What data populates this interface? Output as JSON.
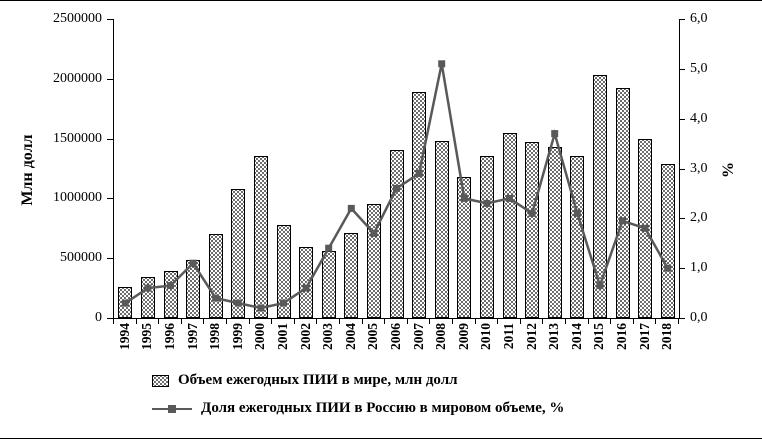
{
  "chart_data": {
    "type": "bar",
    "subtype": "bar-line-combo",
    "categories": [
      "1994",
      "1995",
      "1996",
      "1997",
      "1998",
      "1999",
      "2000",
      "2001",
      "2002",
      "2003",
      "2004",
      "2005",
      "2006",
      "2007",
      "2008",
      "2009",
      "2010",
      "2011",
      "2012",
      "2013",
      "2014",
      "2015",
      "2016",
      "2017",
      "2018"
    ],
    "series": [
      {
        "name": "Объем ежегодных ПИИ в мире, млн долл",
        "type": "bar",
        "axis": "left",
        "values": [
          256000,
          342000,
          392000,
          488000,
          705000,
          1080000,
          1355000,
          780000,
          590000,
          560000,
          710000,
          950000,
          1405000,
          1890000,
          1480000,
          1180000,
          1355000,
          1550000,
          1470000,
          1430000,
          1355000,
          2030000,
          1920000,
          1500000,
          1290000
        ]
      },
      {
        "name": "Доля ежегодных ПИИ в Россию в мировом объеме, %",
        "type": "line",
        "axis": "right",
        "values": [
          0.3,
          0.6,
          0.65,
          1.1,
          0.4,
          0.3,
          0.2,
          0.3,
          0.6,
          1.4,
          2.2,
          1.7,
          2.6,
          2.9,
          5.1,
          2.4,
          2.3,
          2.4,
          2.1,
          3.7,
          2.1,
          0.65,
          1.95,
          1.8,
          1.0
        ]
      }
    ],
    "title": "",
    "xlabel": "",
    "ylabel_left": "Млн долл",
    "ylabel_right": "%",
    "ylim_left": [
      0,
      2500000
    ],
    "ylim_right": [
      0,
      6
    ],
    "left_ticks": [
      "0",
      "500000",
      "1000000",
      "1500000",
      "2000000",
      "2500000"
    ],
    "right_ticks": [
      "0,0",
      "1,0",
      "2,0",
      "3,0",
      "4,0",
      "5,0",
      "6,0"
    ],
    "legend": [
      "Объем ежегодных ПИИ в мире, млн долл",
      "Доля ежегодных ПИИ в Россию в мировом объеме, %"
    ],
    "legend_position": "bottom",
    "grid": false,
    "colors": {
      "bar_fill": "#ffffff",
      "bar_dots": "#3c3c3c",
      "bar_border": "#000000",
      "line": "#595959",
      "marker": "#595959",
      "axis": "#000000"
    }
  }
}
